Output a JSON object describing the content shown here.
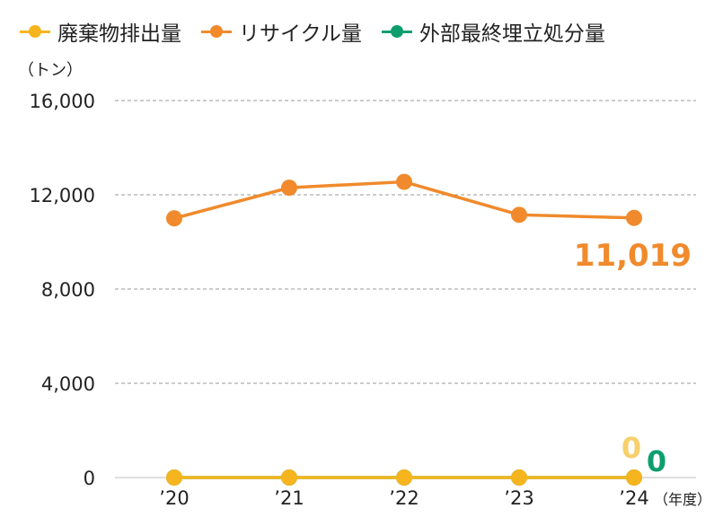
{
  "chart_data": {
    "type": "line",
    "categories": [
      "’20",
      "’21",
      "’22",
      "’23",
      "’24"
    ],
    "series": [
      {
        "name": "廃棄物排出量",
        "color": "#f6b51e",
        "values": [
          0,
          0,
          0,
          0,
          0
        ]
      },
      {
        "name": "リサイクル量",
        "color": "#f08a2c",
        "values": [
          11000,
          12300,
          12550,
          11150,
          11019
        ]
      },
      {
        "name": "外部最終埋立処分量",
        "color": "#0e9e6e",
        "values": [
          0,
          0,
          0,
          0,
          0
        ]
      }
    ],
    "ylabel": "（トン）",
    "xlabel": "（年度）",
    "ylim": [
      0,
      16000
    ],
    "yticks": [
      "16,000",
      "12,000",
      "8,000",
      "4,000",
      "0"
    ],
    "ytick_values": [
      16000,
      12000,
      8000,
      4000,
      0
    ],
    "grid": true,
    "legend_position": "top",
    "annotations": {
      "recycle_last": "11,019",
      "waste_last": "0",
      "landfill_last": "0"
    }
  }
}
